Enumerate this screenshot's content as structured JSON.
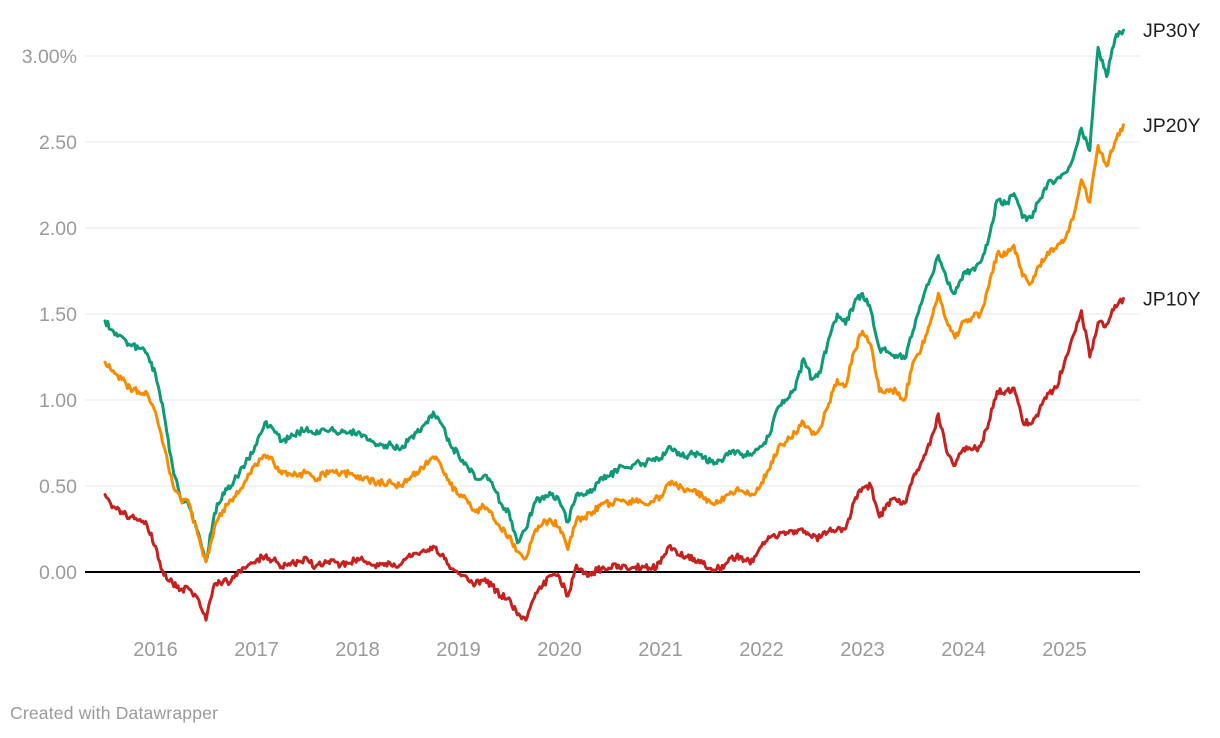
{
  "footer": {
    "credit": "Created with Datawrapper"
  },
  "colors": {
    "background": "#ffffff",
    "grid_line": "#e8e8e8",
    "zero_line": "#000000",
    "axis_text": "#9a9a9a",
    "series_label_text": "#1f1f1f",
    "credit_text": "#9a9a9a"
  },
  "chart_data": {
    "type": "line",
    "title": "",
    "xlabel": "",
    "ylabel": "",
    "y_axis": {
      "unit": "%",
      "tick_values": [
        0,
        0.5,
        1.0,
        1.5,
        2.0,
        2.5,
        3.0
      ],
      "tick_labels": [
        "0.00",
        "0.50",
        "1.00",
        "1.50",
        "2.00",
        "2.50",
        "3.00%"
      ],
      "range": [
        -0.35,
        3.3
      ],
      "grid": true,
      "zero_baseline": true
    },
    "x_axis": {
      "tick_values": [
        2016,
        2017,
        2018,
        2019,
        2020,
        2021,
        2022,
        2023,
        2024,
        2025
      ],
      "tick_labels": [
        "2016",
        "2017",
        "2018",
        "2019",
        "2020",
        "2021",
        "2022",
        "2023",
        "2024",
        "2025"
      ],
      "range": [
        2015.5,
        2025.75
      ]
    },
    "legend": {
      "position": "right-of-line-end"
    },
    "x": [
      2015.5,
      2015.583,
      2015.667,
      2015.75,
      2015.833,
      2015.917,
      2016,
      2016.083,
      2016.167,
      2016.25,
      2016.333,
      2016.417,
      2016.5,
      2016.583,
      2016.667,
      2016.75,
      2016.833,
      2016.917,
      2017,
      2017.083,
      2017.167,
      2017.25,
      2017.333,
      2017.417,
      2017.5,
      2017.583,
      2017.667,
      2017.75,
      2017.833,
      2017.917,
      2018,
      2018.083,
      2018.167,
      2018.25,
      2018.333,
      2018.417,
      2018.5,
      2018.583,
      2018.667,
      2018.75,
      2018.833,
      2018.917,
      2019,
      2019.083,
      2019.167,
      2019.25,
      2019.333,
      2019.417,
      2019.5,
      2019.583,
      2019.667,
      2019.75,
      2019.833,
      2019.917,
      2020,
      2020.083,
      2020.167,
      2020.25,
      2020.333,
      2020.417,
      2020.5,
      2020.583,
      2020.667,
      2020.75,
      2020.833,
      2020.917,
      2021,
      2021.083,
      2021.167,
      2021.25,
      2021.333,
      2021.417,
      2021.5,
      2021.583,
      2021.667,
      2021.75,
      2021.833,
      2021.917,
      2022,
      2022.083,
      2022.167,
      2022.25,
      2022.333,
      2022.417,
      2022.5,
      2022.583,
      2022.667,
      2022.75,
      2022.833,
      2022.917,
      2023,
      2023.083,
      2023.167,
      2023.25,
      2023.333,
      2023.417,
      2023.5,
      2023.583,
      2023.667,
      2023.75,
      2023.833,
      2023.917,
      2024,
      2024.083,
      2024.167,
      2024.25,
      2024.333,
      2024.417,
      2024.5,
      2024.583,
      2024.667,
      2024.75,
      2024.833,
      2024.917,
      2025,
      2025.083,
      2025.167,
      2025.25,
      2025.333,
      2025.417,
      2025.5,
      2025.583
    ],
    "series": [
      {
        "name": "JP30Y",
        "color": "#0e9a78",
        "values": [
          1.46,
          1.4,
          1.37,
          1.32,
          1.3,
          1.27,
          1.15,
          0.92,
          0.62,
          0.42,
          0.38,
          0.24,
          0.06,
          0.34,
          0.46,
          0.5,
          0.58,
          0.66,
          0.74,
          0.87,
          0.83,
          0.76,
          0.78,
          0.81,
          0.84,
          0.8,
          0.83,
          0.84,
          0.81,
          0.81,
          0.81,
          0.79,
          0.75,
          0.74,
          0.74,
          0.71,
          0.76,
          0.81,
          0.86,
          0.93,
          0.86,
          0.74,
          0.68,
          0.62,
          0.54,
          0.56,
          0.52,
          0.4,
          0.35,
          0.17,
          0.25,
          0.4,
          0.44,
          0.45,
          0.41,
          0.29,
          0.45,
          0.45,
          0.48,
          0.55,
          0.56,
          0.6,
          0.61,
          0.63,
          0.63,
          0.65,
          0.66,
          0.73,
          0.68,
          0.67,
          0.69,
          0.66,
          0.64,
          0.65,
          0.68,
          0.7,
          0.68,
          0.69,
          0.73,
          0.8,
          0.96,
          1.0,
          1.06,
          1.24,
          1.12,
          1.16,
          1.36,
          1.5,
          1.44,
          1.56,
          1.62,
          1.52,
          1.3,
          1.28,
          1.26,
          1.24,
          1.4,
          1.56,
          1.7,
          1.84,
          1.7,
          1.62,
          1.74,
          1.76,
          1.8,
          1.94,
          2.16,
          2.14,
          2.2,
          2.06,
          2.06,
          2.16,
          2.26,
          2.28,
          2.32,
          2.4,
          2.58,
          2.45,
          3.05,
          2.88,
          3.1,
          3.15
        ]
      },
      {
        "name": "JP20Y",
        "color": "#f88c00",
        "values": [
          1.22,
          1.17,
          1.12,
          1.07,
          1.05,
          1.04,
          0.93,
          0.73,
          0.52,
          0.42,
          0.4,
          0.22,
          0.06,
          0.26,
          0.36,
          0.42,
          0.47,
          0.57,
          0.62,
          0.68,
          0.64,
          0.57,
          0.57,
          0.56,
          0.58,
          0.53,
          0.57,
          0.59,
          0.57,
          0.57,
          0.56,
          0.55,
          0.52,
          0.52,
          0.52,
          0.5,
          0.54,
          0.58,
          0.62,
          0.67,
          0.61,
          0.51,
          0.45,
          0.42,
          0.35,
          0.38,
          0.34,
          0.25,
          0.21,
          0.12,
          0.08,
          0.23,
          0.28,
          0.3,
          0.26,
          0.13,
          0.3,
          0.32,
          0.35,
          0.4,
          0.4,
          0.42,
          0.4,
          0.41,
          0.4,
          0.41,
          0.44,
          0.52,
          0.5,
          0.47,
          0.48,
          0.44,
          0.4,
          0.41,
          0.45,
          0.48,
          0.46,
          0.45,
          0.52,
          0.6,
          0.73,
          0.76,
          0.81,
          0.87,
          0.8,
          0.84,
          0.98,
          1.12,
          1.08,
          1.28,
          1.4,
          1.32,
          1.05,
          1.06,
          1.05,
          1.0,
          1.22,
          1.3,
          1.44,
          1.62,
          1.46,
          1.36,
          1.46,
          1.48,
          1.5,
          1.66,
          1.85,
          1.84,
          1.9,
          1.72,
          1.68,
          1.78,
          1.86,
          1.88,
          1.93,
          2.05,
          2.28,
          2.15,
          2.48,
          2.36,
          2.5,
          2.6
        ]
      },
      {
        "name": "JP10Y",
        "color": "#c5211e",
        "values": [
          0.45,
          0.38,
          0.35,
          0.32,
          0.3,
          0.27,
          0.15,
          -0.02,
          -0.06,
          -0.1,
          -0.1,
          -0.15,
          -0.28,
          -0.07,
          -0.06,
          -0.05,
          0.01,
          0.04,
          0.07,
          0.09,
          0.07,
          0.03,
          0.04,
          0.06,
          0.08,
          0.03,
          0.05,
          0.07,
          0.04,
          0.05,
          0.08,
          0.06,
          0.04,
          0.05,
          0.04,
          0.04,
          0.09,
          0.11,
          0.12,
          0.15,
          0.1,
          0.02,
          -0.01,
          -0.03,
          -0.07,
          -0.05,
          -0.08,
          -0.14,
          -0.15,
          -0.25,
          -0.28,
          -0.15,
          -0.08,
          -0.02,
          -0.03,
          -0.14,
          0.04,
          -0.01,
          0.0,
          0.02,
          0.02,
          0.04,
          0.02,
          0.03,
          0.03,
          0.02,
          0.05,
          0.15,
          0.1,
          0.09,
          0.08,
          0.05,
          0.02,
          0.02,
          0.06,
          0.09,
          0.07,
          0.06,
          0.15,
          0.2,
          0.21,
          0.23,
          0.24,
          0.23,
          0.2,
          0.2,
          0.24,
          0.25,
          0.25,
          0.41,
          0.49,
          0.5,
          0.32,
          0.4,
          0.42,
          0.4,
          0.55,
          0.64,
          0.74,
          0.92,
          0.7,
          0.62,
          0.72,
          0.71,
          0.73,
          0.87,
          1.05,
          1.05,
          1.07,
          0.88,
          0.86,
          0.94,
          1.04,
          1.07,
          1.22,
          1.37,
          1.52,
          1.25,
          1.45,
          1.44,
          1.55,
          1.59
        ]
      }
    ]
  }
}
